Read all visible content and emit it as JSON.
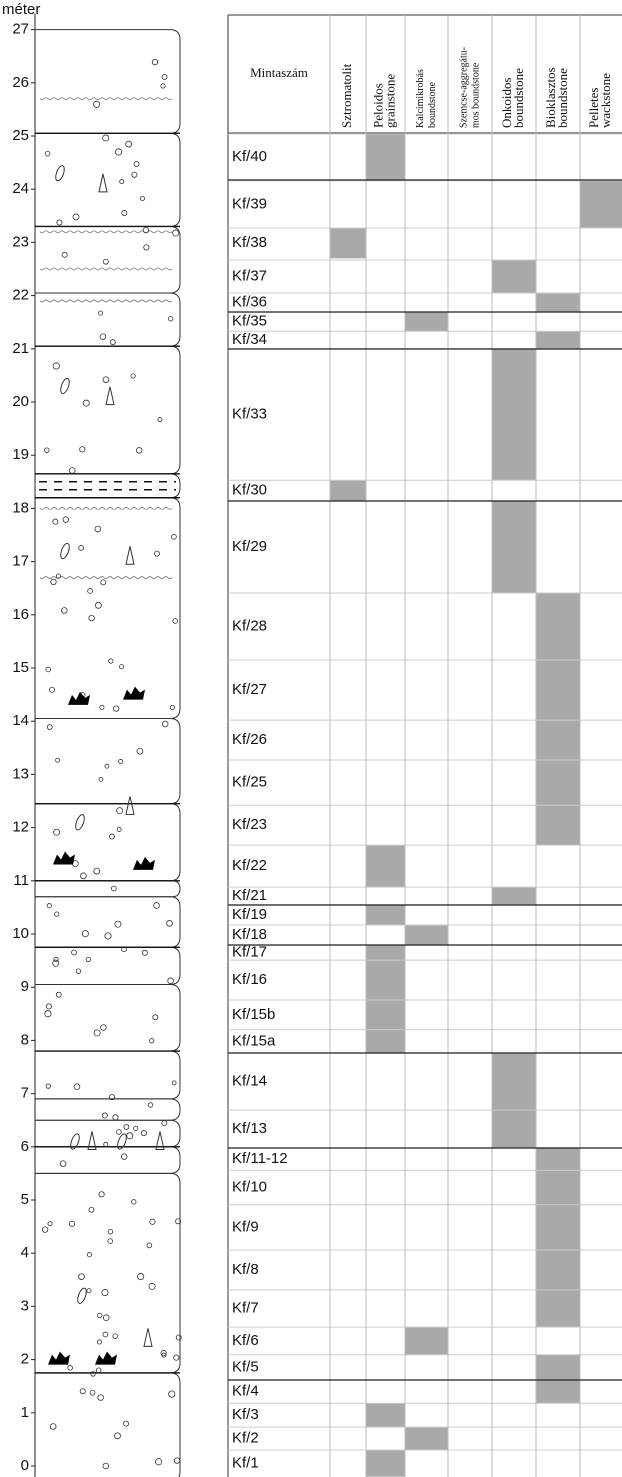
{
  "axis": {
    "label": "méter",
    "ylim": [
      -0.2,
      27.3
    ],
    "yticks": [
      0,
      1,
      2,
      3,
      4,
      5,
      6,
      7,
      8,
      9,
      10,
      11,
      12,
      13,
      14,
      15,
      16,
      17,
      18,
      19,
      20,
      21,
      22,
      23,
      24,
      25,
      26,
      27
    ]
  },
  "header": "Mintaszám",
  "columns": [
    [
      "Sztromatolit"
    ],
    [
      "Peloidos",
      "grainstone"
    ],
    [
      "Kalcimikrobás",
      "boundstone"
    ],
    [
      "Szemcse-aggregátu-",
      "mos boundstone"
    ],
    [
      "Onkoidos",
      "boundstone"
    ],
    [
      "Bioklasztos",
      "boundstone"
    ],
    [
      "Pelletes",
      "wackstone"
    ]
  ],
  "samples": [
    {
      "label": "Kf/40",
      "facies": 1,
      "base": 24.16,
      "top": 25.04
    },
    {
      "label": "Kf/39",
      "facies": 6,
      "base": 23.27,
      "top": 24.16
    },
    {
      "label": "Kf/38",
      "facies": 0,
      "base": 22.7,
      "top": 23.27
    },
    {
      "label": "Kf/37",
      "facies": 4,
      "base": 22.05,
      "top": 22.67
    },
    {
      "label": "Kf/36",
      "facies": 5,
      "base": 21.69,
      "top": 22.05
    },
    {
      "label": "Kf/35",
      "facies": 2,
      "base": 21.33,
      "top": 21.69
    },
    {
      "label": "Kf/34",
      "facies": 5,
      "base": 21.0,
      "top": 21.33
    },
    {
      "label": "Kf/33",
      "facies": 4,
      "base": 18.53,
      "top": 21.0
    },
    {
      "label": "Kf/30",
      "facies": 0,
      "base": 18.14,
      "top": 18.53
    },
    {
      "label": "Kf/29",
      "facies": 4,
      "base": 16.41,
      "top": 18.14
    },
    {
      "label": "Kf/28",
      "facies": 5,
      "base": 15.15,
      "top": 16.41
    },
    {
      "label": "Kf/27",
      "facies": 5,
      "base": 14.02,
      "top": 15.15
    },
    {
      "label": "Kf/26",
      "facies": 5,
      "base": 13.27,
      "top": 14.02
    },
    {
      "label": "Kf/25",
      "facies": 5,
      "base": 12.42,
      "top": 13.27
    },
    {
      "label": "Kf/23",
      "facies": 5,
      "base": 11.67,
      "top": 12.42
    },
    {
      "label": "Kf/22",
      "facies": 1,
      "base": 10.88,
      "top": 11.67
    },
    {
      "label": "Kf/21",
      "facies": 4,
      "base": 10.55,
      "top": 10.88
    },
    {
      "label": "Kf/19",
      "facies": 1,
      "base": 10.17,
      "top": 10.55
    },
    {
      "label": "Kf/18",
      "facies": 2,
      "base": 9.79,
      "top": 10.17
    },
    {
      "label": "Kf/17",
      "facies": 1,
      "base": 9.51,
      "top": 9.79
    },
    {
      "label": "Kf/16",
      "facies": 1,
      "base": 8.76,
      "top": 9.51
    },
    {
      "label": "Kf/15b",
      "facies": 1,
      "base": 8.2,
      "top": 8.76
    },
    {
      "label": "Kf/15a",
      "facies": 1,
      "base": 7.76,
      "top": 8.2
    },
    {
      "label": "Kf/14",
      "facies": 4,
      "base": 6.69,
      "top": 7.76
    },
    {
      "label": "Kf/13",
      "facies": 4,
      "base": 5.98,
      "top": 6.69
    },
    {
      "label": "Kf/11-12",
      "facies": 5,
      "base": 5.56,
      "top": 5.98
    },
    {
      "label": "Kf/10",
      "facies": 5,
      "base": 4.91,
      "top": 5.56
    },
    {
      "label": "Kf/9",
      "facies": 5,
      "base": 4.06,
      "top": 4.91
    },
    {
      "label": "Kf/8",
      "facies": 5,
      "base": 3.31,
      "top": 4.06
    },
    {
      "label": "Kf/7",
      "facies": 5,
      "base": 2.61,
      "top": 3.31
    },
    {
      "label": "Kf/6",
      "facies": 2,
      "base": 2.09,
      "top": 2.61
    },
    {
      "label": "Kf/5",
      "facies": 5,
      "base": 1.62,
      "top": 2.09
    },
    {
      "label": "Kf/4",
      "facies": 5,
      "base": 1.18,
      "top": 1.62
    },
    {
      "label": "Kf/3",
      "facies": 1,
      "base": 0.73,
      "top": 1.18
    },
    {
      "label": "Kf/2",
      "facies": 2,
      "base": 0.3,
      "top": 0.73
    },
    {
      "label": "Kf/1",
      "facies": 1,
      "base": -0.2,
      "top": 0.3
    }
  ],
  "shade_color": "#a9a9a9"
}
